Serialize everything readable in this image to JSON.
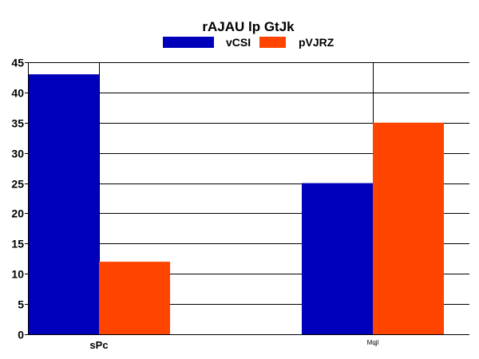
{
  "chart_data": {
    "type": "bar",
    "title": "rAJAU lp GtJk",
    "categories": [
      "sPc",
      "Mqjl"
    ],
    "series": [
      {
        "name": "vCSI",
        "values": [
          43,
          25
        ],
        "color": "#0000bb"
      },
      {
        "name": "pVJRZ",
        "values": [
          12,
          35
        ],
        "color": "#ff4400"
      }
    ],
    "y_ticks": [
      "0",
      "5",
      "10",
      "15",
      "20",
      "25",
      "30",
      "35",
      "40",
      "45"
    ],
    "ylim": [
      0,
      45
    ],
    "xlabel": "",
    "ylabel": "",
    "grid": true,
    "legend_position": "top-center"
  }
}
